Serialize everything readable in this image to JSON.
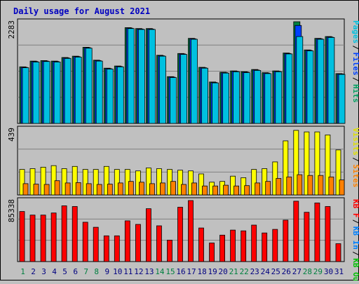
{
  "chart_data": {
    "type": "bar",
    "title": "Daily usage for August 2021",
    "categories": [
      "1",
      "2",
      "3",
      "4",
      "5",
      "6",
      "7",
      "8",
      "9",
      "10",
      "11",
      "12",
      "13",
      "14",
      "15",
      "16",
      "17",
      "18",
      "19",
      "20",
      "21",
      "22",
      "23",
      "24",
      "25",
      "26",
      "27",
      "28",
      "29",
      "30",
      "31"
    ],
    "weekend_days": [
      "1",
      "7",
      "8",
      "14",
      "15",
      "21",
      "22",
      "28",
      "29"
    ],
    "panels": [
      {
        "id": "hits",
        "ymax_label": "2283",
        "ylim": [
          0,
          2283
        ],
        "legend": [
          {
            "label": "Pages",
            "color": "#00c0e0"
          },
          {
            "label": "Files",
            "color": "#0040ff"
          },
          {
            "label": "Hits",
            "color": "#00a060"
          }
        ],
        "series": [
          {
            "name": "Hits",
            "color": "#008040",
            "values": [
              1270,
              1400,
              1410,
              1400,
              1480,
              1510,
              1710,
              1420,
              1240,
              1290,
              2150,
              2130,
              2130,
              1530,
              1050,
              1570,
              1910,
              1260,
              930,
              1150,
              1180,
              1160,
              1210,
              1140,
              1180,
              1580,
              2283,
              1650,
              1910,
              1950,
              1120
            ]
          },
          {
            "name": "Files",
            "color": "#0040ff",
            "values": [
              1260,
              1390,
              1400,
              1390,
              1470,
              1500,
              1700,
              1410,
              1230,
              1280,
              2140,
              2120,
              2120,
              1520,
              1040,
              1560,
              1900,
              1250,
              920,
              1140,
              1170,
              1150,
              1200,
              1130,
              1170,
              1570,
              2200,
              1640,
              1900,
              1940,
              1110
            ]
          },
          {
            "name": "Pages",
            "color": "#00c0e0",
            "values": [
              1250,
              1380,
              1390,
              1380,
              1460,
              1490,
              1690,
              1400,
              1220,
              1270,
              2130,
              2110,
              2110,
              1510,
              1030,
              1550,
              1890,
              1240,
              910,
              1130,
              1160,
              1140,
              1190,
              1120,
              1160,
              1560,
              1950,
              1630,
              1890,
              1930,
              1100
            ]
          }
        ]
      },
      {
        "id": "visits",
        "ymax_label": "439",
        "ylim": [
          0,
          439
        ],
        "legend": [
          {
            "label": "Visits",
            "color": "#e0e000"
          },
          {
            "label": "Sites",
            "color": "#ff8000"
          }
        ],
        "series": [
          {
            "name": "Visits",
            "color": "#ffff00",
            "values": [
              170,
              175,
              185,
              195,
              175,
              190,
              170,
              170,
              190,
              170,
              170,
              160,
              180,
              175,
              170,
              165,
              160,
              140,
              85,
              90,
              125,
              115,
              170,
              175,
              220,
              360,
              430,
              420,
              420,
              400,
              300
            ]
          },
          {
            "name": "Sites",
            "color": "#ff8000",
            "values": [
              75,
              72,
              70,
              95,
              80,
              82,
              75,
              70,
              72,
              80,
              90,
              85,
              75,
              80,
              90,
              70,
              80,
              60,
              60,
              65,
              60,
              62,
              80,
              90,
              110,
              120,
              135,
              130,
              130,
              120,
              100
            ]
          }
        ]
      },
      {
        "id": "kbytes",
        "ymax_label": "85338",
        "ylim": [
          0,
          85338
        ],
        "legend": [
          {
            "label": "KB F",
            "color": "#ff0000"
          },
          {
            "label": "KB In",
            "color": "#0080ff"
          },
          {
            "label": "KB Out",
            "color": "#00c000"
          }
        ],
        "series": [
          {
            "name": "KB F",
            "color": "#ff0000",
            "values": [
              70000,
              65000,
              65000,
              68000,
              78000,
              77000,
              55000,
              48000,
              36000,
              36000,
              57000,
              52000,
              74000,
              50000,
              30000,
              76000,
              85338,
              47000,
              26000,
              37000,
              44000,
              43000,
              51000,
              40000,
              45000,
              58000,
              84500,
              69000,
              82000,
              77000,
              25000
            ]
          }
        ]
      }
    ]
  }
}
